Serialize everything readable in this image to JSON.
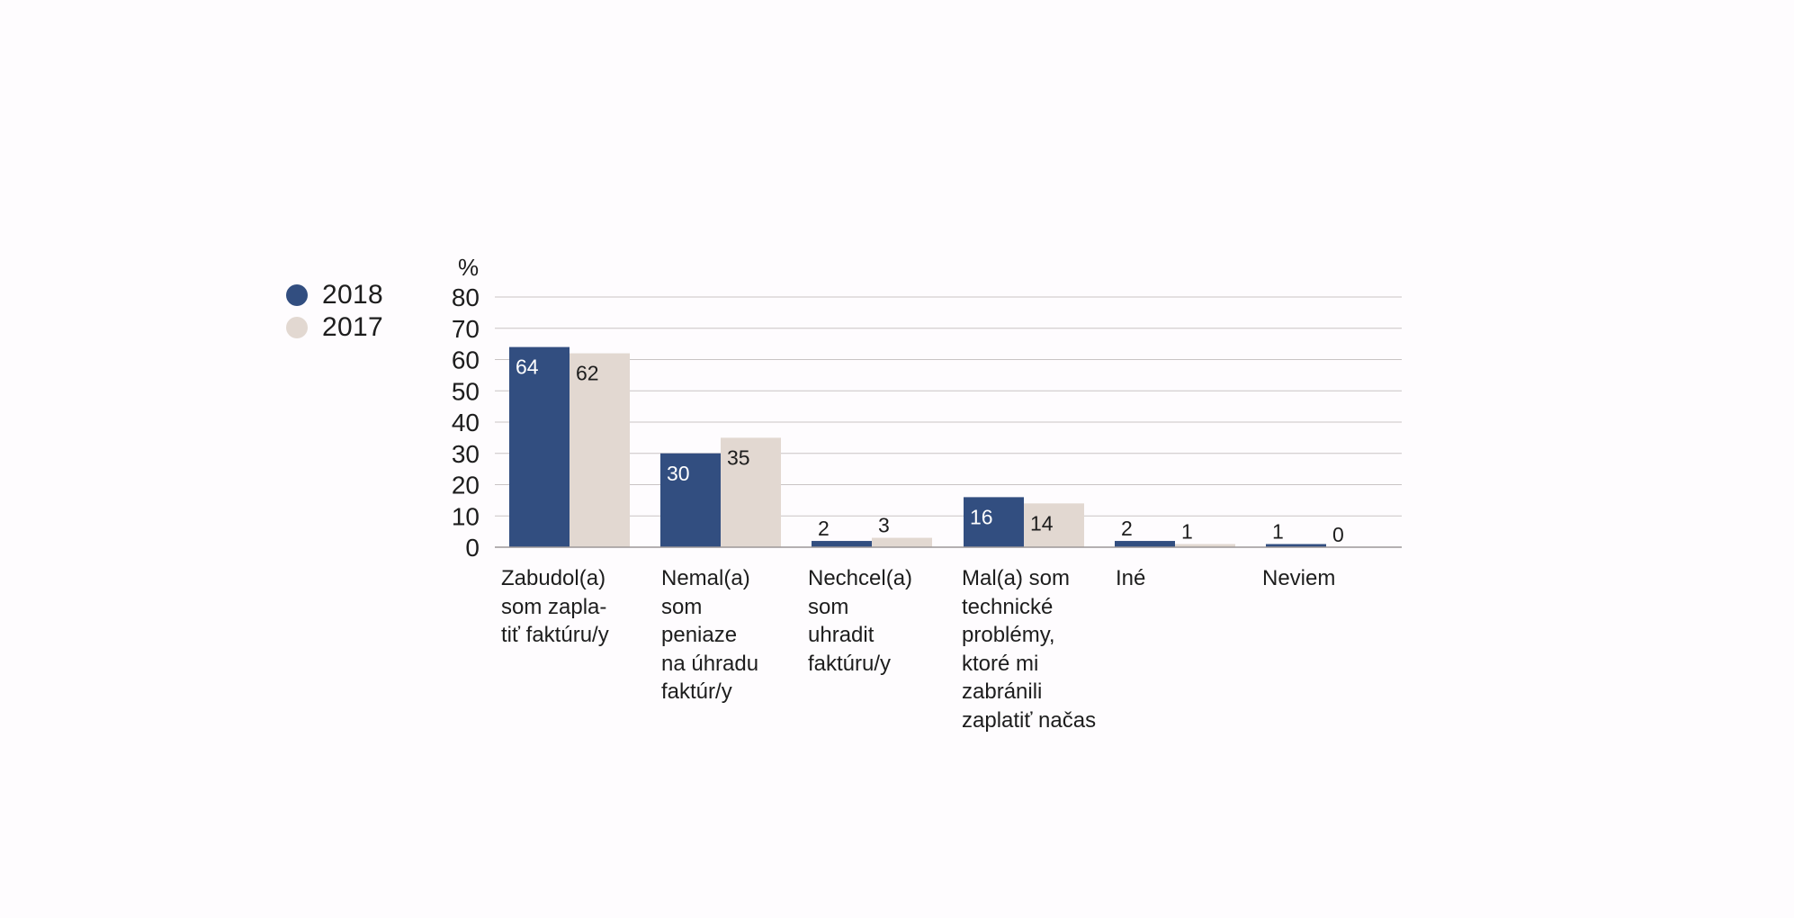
{
  "chart_data": {
    "type": "bar",
    "ylabel": "%",
    "ylim": [
      0,
      80
    ],
    "yticks": [
      "0",
      "10",
      "20",
      "30",
      "40",
      "50",
      "60",
      "70",
      "80"
    ],
    "grid": true,
    "legend_position": "left",
    "categories": [
      "Zabudol(a)\nsom zapla-\ntiť faktúru/y",
      "Nemal(a)\nsom\npeniaze\nna úhradu\nfaktúr/y",
      "Nechcel(a)\nsom\nuhradit\nfaktúru/y",
      "Mal(a) som\ntechnické\nproblémy,\nktoré mi\nzabránili\nzaplatiť načas",
      "Iné",
      "Neviem"
    ],
    "series": [
      {
        "name": "2018",
        "color": "#324e80",
        "label_color_inside": "#ffffff",
        "values": [
          64,
          30,
          2,
          16,
          2,
          1
        ]
      },
      {
        "name": "2017",
        "color": "#e2d8d1",
        "label_color_inside": "#1d1d1d",
        "values": [
          62,
          35,
          3,
          14,
          1,
          0
        ]
      }
    ]
  },
  "colors": {
    "grid": "#c9c4c4",
    "axis": "#9c9797",
    "text": "#1d1d1d"
  }
}
